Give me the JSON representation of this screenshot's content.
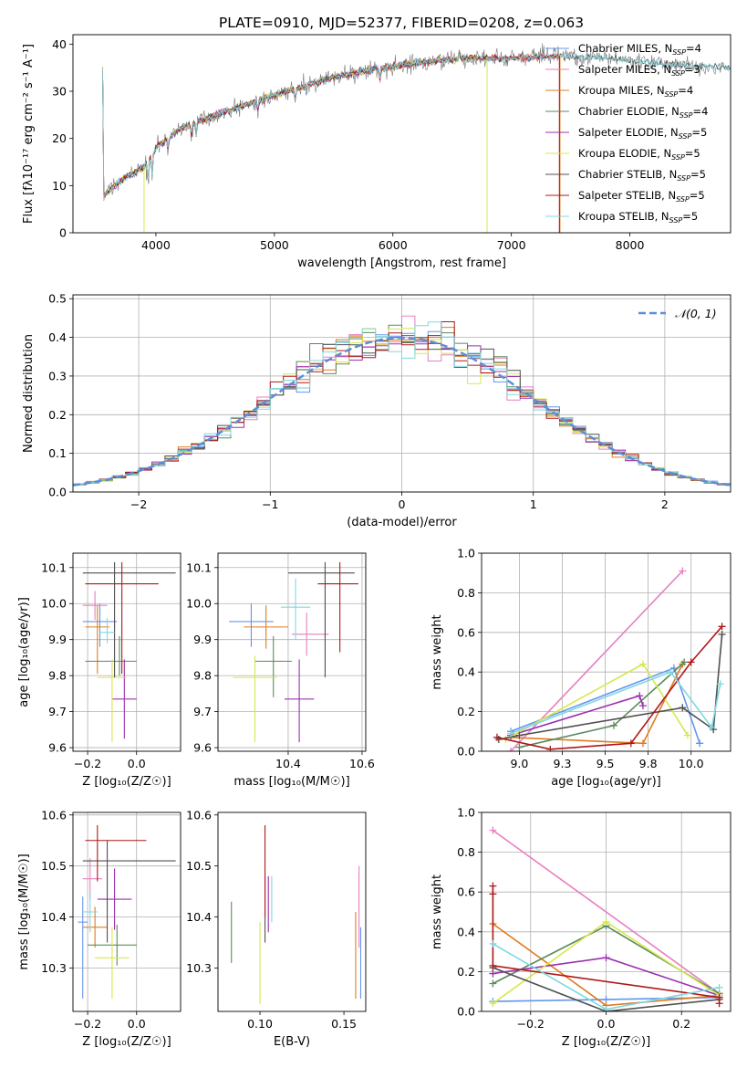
{
  "figure": {
    "title": "PLATE=0910, MJD=52377, FIBERID=0208, z=0.063"
  },
  "colors": {
    "Chabrier MILES": "#6495ed",
    "Salpeter MILES": "#e87fbf",
    "Kroupa MILES": "#e07b20",
    "Chabrier ELODIE": "#5b8a5b",
    "Salpeter ELODIE": "#9b30b0",
    "Kroupa ELODIE": "#d8e84a",
    "Chabrier STELIB": "#505050",
    "Salpeter STELIB": "#b01818",
    "Kroupa STELIB": "#7fd8e0",
    "normal_fit": "#5a8fd8",
    "data_spectrum": "#7a7a7a"
  },
  "chart_data": [
    {
      "id": "spectrum",
      "type": "line",
      "xlabel": "wavelength [Angstrom, rest frame]",
      "ylabel": "Flux [fλ10⁻¹⁷ erg cm⁻² s⁻¹ A⁻¹]",
      "xlim": [
        3300,
        8850
      ],
      "ylim": [
        0,
        42
      ],
      "xticks": [
        4000,
        5000,
        6000,
        7000,
        8000
      ],
      "yticks": [
        0,
        10,
        20,
        30,
        40
      ],
      "grid": false,
      "legend_position": "right",
      "series": [
        {
          "name": "Chabrier MILES, N_SSP=4",
          "x_range": [
            3550,
            7400
          ]
        },
        {
          "name": "Salpeter MILES, N_SSP=3",
          "x_range": [
            3550,
            7400
          ]
        },
        {
          "name": "Kroupa MILES, N_SSP=4",
          "x_range": [
            3550,
            7400
          ]
        },
        {
          "name": "Chabrier ELODIE, N_SSP=4",
          "x_range": [
            3550,
            6800
          ]
        },
        {
          "name": "Salpeter ELODIE, N_SSP=5",
          "x_range": [
            3550,
            6800
          ]
        },
        {
          "name": "Kroupa ELODIE, N_SSP=5",
          "x_range": [
            3550,
            6800
          ]
        },
        {
          "name": "Chabrier STELIB, N_SSP=5",
          "x_range": [
            3550,
            8850
          ]
        },
        {
          "name": "Salpeter STELIB, N_SSP=5",
          "x_range": [
            3550,
            7400
          ]
        },
        {
          "name": "Kroupa STELIB, N_SSP=5",
          "x_range": [
            3550,
            8850
          ]
        }
      ],
      "continuum": {
        "x": [
          3560,
          3700,
          3900,
          4000,
          4200,
          4500,
          4800,
          5100,
          5500,
          5800,
          6200,
          6600,
          7000,
          7400,
          7800,
          8200,
          8800
        ],
        "y": [
          8,
          11,
          14,
          18,
          22,
          25,
          27.5,
          30,
          33,
          34.5,
          36,
          37,
          37,
          37.5,
          37,
          36,
          35
        ]
      }
    },
    {
      "id": "residuals",
      "type": "histogram",
      "xlabel": "(data-model)/error",
      "ylabel": "Normed distribution",
      "xlim": [
        -2.5,
        2.5
      ],
      "ylim": [
        0,
        0.51
      ],
      "xticks": [
        -2,
        -1,
        0,
        1,
        2
      ],
      "yticks": [
        0.0,
        0.1,
        0.2,
        0.3,
        0.4,
        0.5
      ],
      "grid": true,
      "legend_position": "top-right",
      "legend": [
        "𝒩(0, 1)"
      ],
      "bin_width": 0.1
    },
    {
      "id": "age_vs_Z",
      "type": "errorbar",
      "xlabel": "Z [log₁₀(Z/Z☉)]",
      "ylabel": "age  [log₁₀(age/yr)]",
      "xlim": [
        -0.26,
        0.18
      ],
      "ylim": [
        9.59,
        10.14
      ],
      "xticks": [
        -0.2,
        0.0
      ],
      "yticks": [
        9.6,
        9.7,
        9.8,
        9.9,
        10.0,
        10.1
      ],
      "grid": true,
      "points": [
        {
          "model": "Chabrier MILES",
          "x": -0.15,
          "y": 9.95,
          "xerr": [
            0.07,
            0.07
          ],
          "yerr": [
            0.07,
            0.05
          ]
        },
        {
          "model": "Salpeter MILES",
          "x": -0.17,
          "y": 9.995,
          "xerr": [
            0.05,
            0.05
          ],
          "yerr": [
            0.04,
            0.04
          ]
        },
        {
          "model": "Kroupa MILES",
          "x": -0.16,
          "y": 9.935,
          "xerr": [
            0.05,
            0.05
          ],
          "yerr": [
            0.13,
            0.06
          ]
        },
        {
          "model": "Chabrier ELODIE",
          "x": -0.07,
          "y": 9.84,
          "xerr": [
            0.14,
            0.07
          ],
          "yerr": [
            0.04,
            0.07
          ]
        },
        {
          "model": "Salpeter ELODIE",
          "x": -0.05,
          "y": 9.735,
          "xerr": [
            0.05,
            0.05
          ],
          "yerr": [
            0.11,
            0.11
          ]
        },
        {
          "model": "Kroupa ELODIE",
          "x": -0.1,
          "y": 9.795,
          "xerr": [
            0.06,
            0.06
          ],
          "yerr": [
            0.18,
            0.05
          ]
        },
        {
          "model": "Chabrier STELIB",
          "x": -0.09,
          "y": 10.085,
          "xerr": [
            0.13,
            0.25
          ],
          "yerr": [
            0.29,
            0.03
          ]
        },
        {
          "model": "Salpeter STELIB",
          "x": -0.06,
          "y": 10.055,
          "xerr": [
            0.15,
            0.15
          ],
          "yerr": [
            0.25,
            0.06
          ]
        },
        {
          "model": "Kroupa STELIB",
          "x": -0.12,
          "y": 9.92,
          "xerr": [
            0.03,
            0.03
          ],
          "yerr": [
            0.03,
            0.04
          ]
        }
      ]
    },
    {
      "id": "age_vs_mass",
      "type": "errorbar",
      "xlabel": "mass [log₁₀(M/M☉)]",
      "ylabel": "",
      "xlim": [
        10.21,
        10.61
      ],
      "ylim": [
        9.59,
        10.14
      ],
      "xticks": [
        10.4,
        10.6
      ],
      "yticks": [
        9.6,
        9.7,
        9.8,
        9.9,
        10.0,
        10.1
      ],
      "grid": true,
      "points": [
        {
          "model": "Chabrier MILES",
          "x": 10.3,
          "y": 9.95,
          "xerr": [
            0.06,
            0.06
          ],
          "yerr": [
            0.07,
            0.05
          ]
        },
        {
          "model": "Salpeter MILES",
          "x": 10.45,
          "y": 9.915,
          "xerr": [
            0.04,
            0.06
          ],
          "yerr": [
            0.06,
            0.06
          ]
        },
        {
          "model": "Kroupa MILES",
          "x": 10.34,
          "y": 9.935,
          "xerr": [
            0.06,
            0.06
          ],
          "yerr": [
            0.06,
            0.06
          ]
        },
        {
          "model": "Chabrier ELODIE",
          "x": 10.36,
          "y": 9.84,
          "xerr": [
            0.05,
            0.05
          ],
          "yerr": [
            0.1,
            0.07
          ]
        },
        {
          "model": "Salpeter ELODIE",
          "x": 10.43,
          "y": 9.735,
          "xerr": [
            0.04,
            0.04
          ],
          "yerr": [
            0.12,
            0.11
          ]
        },
        {
          "model": "Kroupa ELODIE",
          "x": 10.31,
          "y": 9.795,
          "xerr": [
            0.06,
            0.06
          ],
          "yerr": [
            0.18,
            0.06
          ]
        },
        {
          "model": "Chabrier STELIB",
          "x": 10.5,
          "y": 10.085,
          "xerr": [
            0.1,
            0.08
          ],
          "yerr": [
            0.29,
            0.03
          ]
        },
        {
          "model": "Salpeter STELIB",
          "x": 10.54,
          "y": 10.055,
          "xerr": [
            0.06,
            0.05
          ],
          "yerr": [
            0.19,
            0.06
          ]
        },
        {
          "model": "Kroupa STELIB",
          "x": 10.42,
          "y": 9.99,
          "xerr": [
            0.04,
            0.04
          ],
          "yerr": [
            0.09,
            0.08
          ]
        }
      ]
    },
    {
      "id": "weight_vs_age",
      "type": "line",
      "xlabel": "age  [log₁₀(age/yr)]",
      "ylabel": "mass weight",
      "xlim": [
        8.78,
        10.23
      ],
      "ylim": [
        0,
        1.0
      ],
      "xticks": [
        9.0,
        9.25,
        9.5,
        9.75,
        10.0
      ],
      "yticks": [
        0.0,
        0.2,
        0.4,
        0.6,
        0.8,
        1.0
      ],
      "grid": true,
      "series": [
        {
          "name": "Chabrier MILES",
          "x": [
            8.95,
            9.9,
            10.05
          ],
          "y": [
            0.1,
            0.42,
            0.04
          ]
        },
        {
          "name": "Salpeter MILES",
          "x": [
            8.95,
            9.95
          ],
          "y": [
            0.0,
            0.91
          ]
        },
        {
          "name": "Kroupa MILES",
          "x": [
            8.95,
            9.72,
            9.95
          ],
          "y": [
            0.07,
            0.04,
            0.44
          ]
        },
        {
          "name": "Chabrier ELODIE",
          "x": [
            9.0,
            9.55,
            9.96
          ],
          "y": [
            0.02,
            0.13,
            0.45
          ]
        },
        {
          "name": "Salpeter ELODIE",
          "x": [
            8.95,
            9.7,
            9.72
          ],
          "y": [
            0.08,
            0.28,
            0.23
          ]
        },
        {
          "name": "Kroupa ELODIE",
          "x": [
            8.92,
            9.72,
            9.98
          ],
          "y": [
            0.06,
            0.44,
            0.08
          ]
        },
        {
          "name": "Chabrier STELIB",
          "x": [
            8.88,
            9.0,
            9.95,
            10.13,
            10.18
          ],
          "y": [
            0.06,
            0.08,
            0.22,
            0.11,
            0.59
          ]
        },
        {
          "name": "Salpeter STELIB",
          "x": [
            8.87,
            9.18,
            9.65,
            10.0,
            10.18
          ],
          "y": [
            0.07,
            0.01,
            0.04,
            0.45,
            0.63
          ]
        },
        {
          "name": "Kroupa STELIB",
          "x": [
            8.95,
            9.88,
            10.12,
            10.17
          ],
          "y": [
            0.09,
            0.4,
            0.12,
            0.34
          ]
        }
      ]
    },
    {
      "id": "mass_vs_Z",
      "type": "errorbar",
      "xlabel": "Z [log₁₀(Z/Z☉)]",
      "ylabel": "mass [log₁₀(M/M☉)]",
      "xlim": [
        -0.26,
        0.18
      ],
      "ylim": [
        10.215,
        10.605
      ],
      "xticks": [
        -0.2,
        0.0
      ],
      "yticks": [
        10.3,
        10.4,
        10.5,
        10.6
      ],
      "grid": true,
      "points": [
        {
          "model": "Chabrier MILES",
          "x": -0.22,
          "y": 10.39,
          "xerr": [
            0.02,
            0.02
          ],
          "yerr": [
            0.15,
            0.05
          ]
        },
        {
          "model": "Salpeter MILES",
          "x": -0.19,
          "y": 10.475,
          "xerr": [
            0.03,
            0.05
          ],
          "yerr": [
            0.04,
            0.04
          ]
        },
        {
          "model": "Kroupa MILES",
          "x": -0.17,
          "y": 10.38,
          "xerr": [
            0.05,
            0.05
          ],
          "yerr": [
            0.04,
            0.04
          ]
        },
        {
          "model": "Chabrier ELODIE",
          "x": -0.08,
          "y": 10.345,
          "xerr": [
            0.12,
            0.08
          ],
          "yerr": [
            0.04,
            0.04
          ]
        },
        {
          "model": "Salpeter ELODIE",
          "x": -0.09,
          "y": 10.435,
          "xerr": [
            0.07,
            0.07
          ],
          "yerr": [
            0.06,
            0.06
          ]
        },
        {
          "model": "Kroupa ELODIE",
          "x": -0.1,
          "y": 10.32,
          "xerr": [
            0.07,
            0.07
          ],
          "yerr": [
            0.08,
            0.06
          ]
        },
        {
          "model": "Chabrier STELIB",
          "x": -0.12,
          "y": 10.51,
          "xerr": [
            0.1,
            0.28
          ],
          "yerr": [
            0.16,
            0.04
          ]
        },
        {
          "model": "Salpeter STELIB",
          "x": -0.16,
          "y": 10.55,
          "xerr": [
            0.05,
            0.2
          ],
          "yerr": [
            0.08,
            0.03
          ]
        },
        {
          "model": "Kroupa STELIB",
          "x": -0.19,
          "y": 10.41,
          "xerr": [
            0.03,
            0.03
          ],
          "yerr": [
            0.04,
            0.04
          ]
        }
      ]
    },
    {
      "id": "mass_vs_EBV",
      "type": "errorbar",
      "xlabel": "E(B-V)",
      "ylabel": "",
      "xlim": [
        0.075,
        0.163
      ],
      "ylim": [
        10.215,
        10.605
      ],
      "xticks": [
        0.1,
        0.15
      ],
      "yticks": [
        10.3,
        10.4,
        10.5,
        10.6
      ],
      "grid": false,
      "points": [
        {
          "model": "Chabrier MILES",
          "x": 0.16,
          "y": 10.33,
          "yerr": [
            0.09,
            0.05
          ]
        },
        {
          "model": "Salpeter MILES",
          "x": 0.159,
          "y": 10.42,
          "yerr": [
            0.08,
            0.08
          ]
        },
        {
          "model": "Kroupa MILES",
          "x": 0.157,
          "y": 10.33,
          "yerr": [
            0.09,
            0.08
          ]
        },
        {
          "model": "Chabrier ELODIE",
          "x": 0.083,
          "y": 10.37,
          "yerr": [
            0.06,
            0.06
          ]
        },
        {
          "model": "Salpeter ELODIE",
          "x": 0.105,
          "y": 10.43,
          "yerr": [
            0.06,
            0.05
          ]
        },
        {
          "model": "Kroupa ELODIE",
          "x": 0.1,
          "y": 10.33,
          "yerr": [
            0.1,
            0.06
          ]
        },
        {
          "model": "Chabrier STELIB",
          "x": 0.103,
          "y": 10.43,
          "yerr": [
            0.08,
            0.05
          ]
        },
        {
          "model": "Salpeter STELIB",
          "x": 0.103,
          "y": 10.5,
          "yerr": [
            0.1,
            0.08
          ]
        },
        {
          "model": "Kroupa STELIB",
          "x": 0.107,
          "y": 10.44,
          "yerr": [
            0.05,
            0.04
          ]
        }
      ]
    },
    {
      "id": "weight_vs_Z",
      "type": "line",
      "xlabel": "Z [log₁₀(Z/Z☉)]",
      "ylabel": "mass weight",
      "xlim": [
        -0.33,
        0.33
      ],
      "ylim": [
        0,
        1.0
      ],
      "xticks": [
        -0.2,
        0.0,
        0.2
      ],
      "yticks": [
        0.0,
        0.2,
        0.4,
        0.6,
        0.8,
        1.0
      ],
      "grid": true,
      "series": [
        {
          "name": "Chabrier MILES",
          "x": [
            -0.3,
            0.0,
            0.3
          ],
          "y": [
            0.05,
            0.06,
            0.07
          ]
        },
        {
          "name": "Salpeter MILES",
          "x": [
            -0.3,
            0.3
          ],
          "y": [
            0.91,
            0.09
          ]
        },
        {
          "name": "Kroupa MILES",
          "x": [
            -0.3,
            0.0,
            0.3
          ],
          "y": [
            0.44,
            0.03,
            0.08
          ]
        },
        {
          "name": "Chabrier ELODIE",
          "x": [
            -0.3,
            0.0,
            0.3
          ],
          "y": [
            0.14,
            0.43,
            0.09
          ]
        },
        {
          "name": "Salpeter ELODIE",
          "x": [
            -0.3,
            0.0,
            0.3
          ],
          "y": [
            0.19,
            0.27,
            0.08
          ]
        },
        {
          "name": "Kroupa ELODIE",
          "x": [
            -0.3,
            0.0,
            0.3
          ],
          "y": [
            0.04,
            0.45,
            0.08
          ]
        },
        {
          "name": "Chabrier STELIB",
          "x": [
            -0.3,
            0.0,
            0.3
          ],
          "y": [
            0.22,
            0.0,
            0.06
          ]
        },
        {
          "name": "Salpeter STELIB",
          "x": [
            -0.3,
            -0.3,
            -0.3,
            0.3,
            0.3
          ],
          "y": [
            0.63,
            0.59,
            0.23,
            0.07,
            0.04
          ]
        },
        {
          "name": "Kroupa STELIB",
          "x": [
            -0.3,
            0.0,
            0.3
          ],
          "y": [
            0.34,
            0.01,
            0.12
          ]
        }
      ]
    }
  ]
}
